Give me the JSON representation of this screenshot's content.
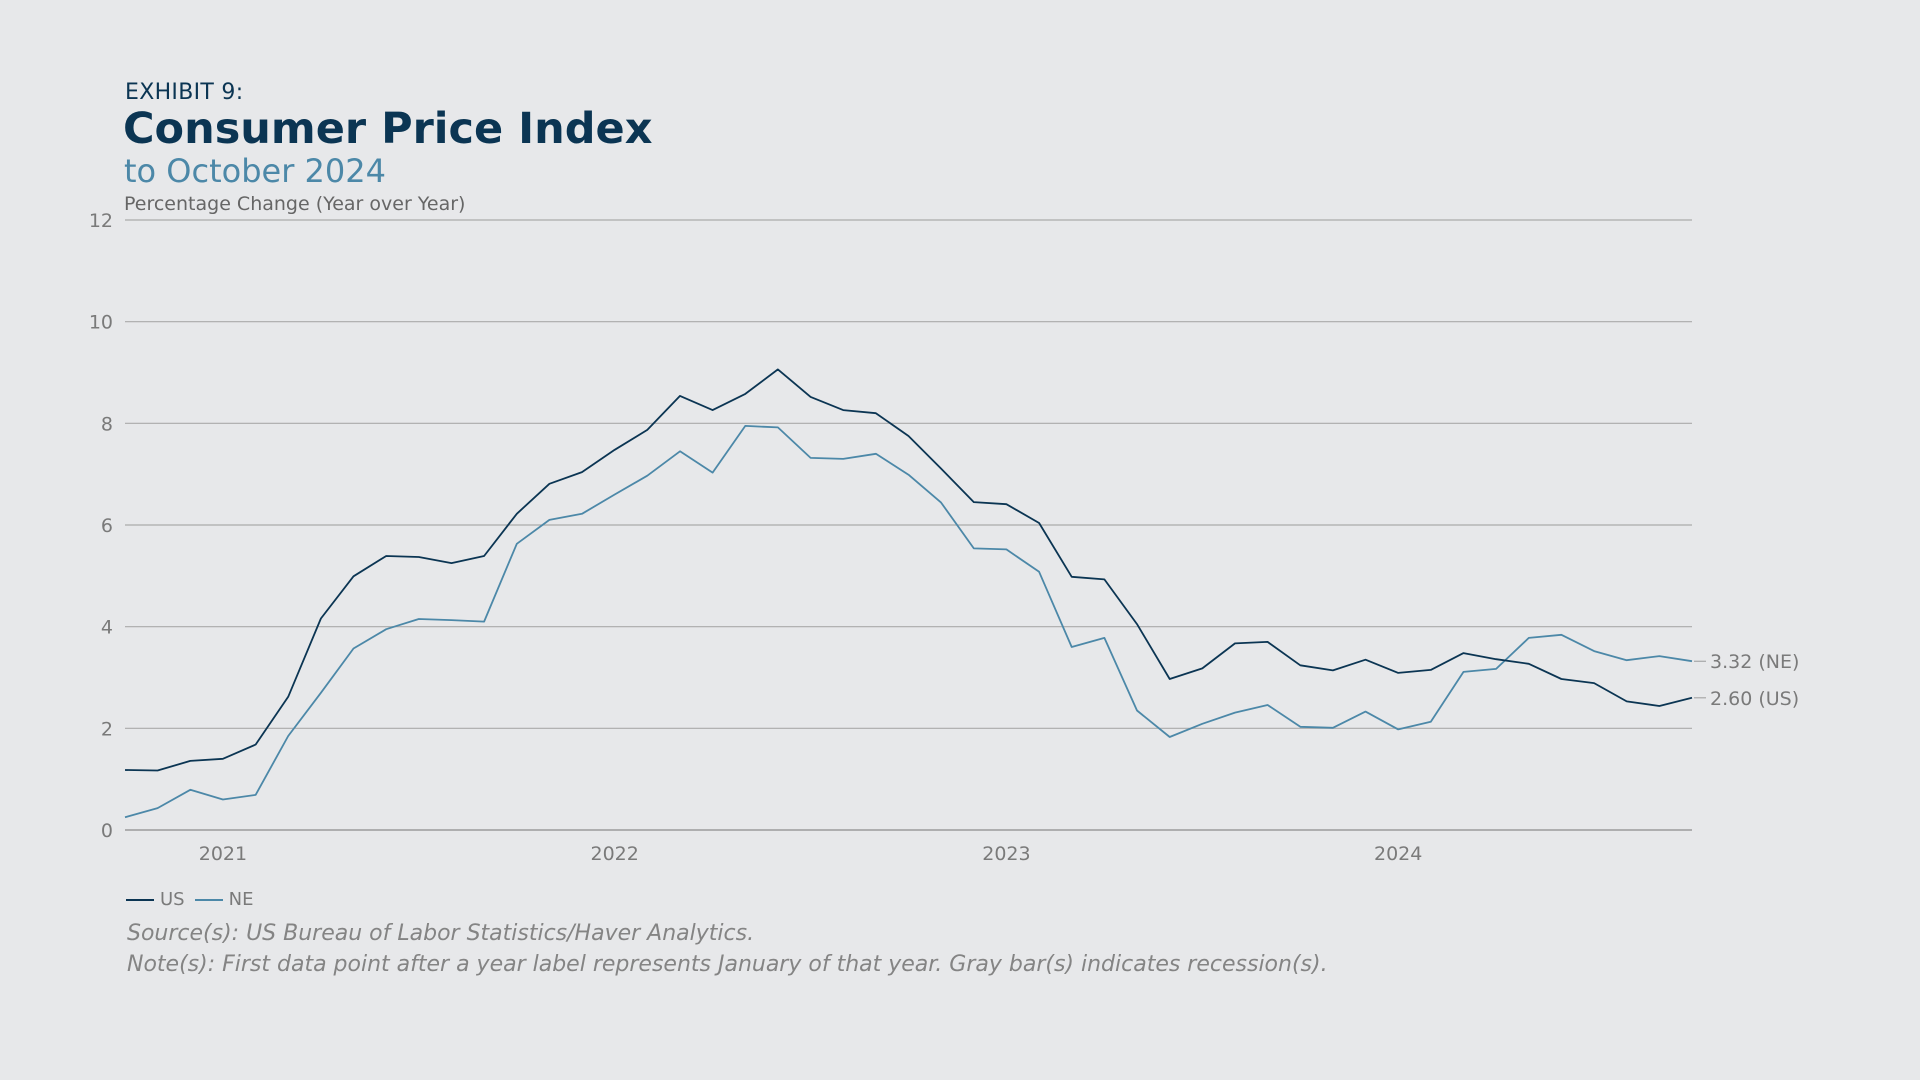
{
  "header": {
    "exhibit": "EXHIBIT 9:",
    "title": "Consumer Price Index",
    "subtitle": "to October 2024",
    "ylabel": "Percentage Change (Year over Year)"
  },
  "legend": {
    "us_label": "US",
    "ne_label": "NE"
  },
  "notes": {
    "source": "Source(s): US Bureau of Labor Statistics/Haver Analytics.",
    "note": "Note(s): First data point after a year label represents January of that year. Gray bar(s) indicates recession(s)."
  },
  "colors": {
    "us": "#0b3553",
    "ne": "#4c88a8",
    "grid": "#aaaaaa",
    "tick_text": "#7a7a7a",
    "background": "#e7e8ea"
  },
  "chart_data": {
    "type": "line",
    "title": "Consumer Price Index",
    "subtitle": "to October 2024",
    "ylabel": "Percentage Change (Year over Year)",
    "xlabel": "",
    "ylim": [
      0,
      12
    ],
    "yticks": [
      0,
      2,
      4,
      6,
      8,
      10,
      12
    ],
    "grid": true,
    "legend_position": "bottom-left",
    "x_start": "2020-10",
    "x_end": "2024-10",
    "x": [
      "2020-10",
      "2020-11",
      "2020-12",
      "2021-01",
      "2021-02",
      "2021-03",
      "2021-04",
      "2021-05",
      "2021-06",
      "2021-07",
      "2021-08",
      "2021-09",
      "2021-10",
      "2021-11",
      "2021-12",
      "2022-01",
      "2022-02",
      "2022-03",
      "2022-04",
      "2022-05",
      "2022-06",
      "2022-07",
      "2022-08",
      "2022-09",
      "2022-10",
      "2022-11",
      "2022-12",
      "2023-01",
      "2023-02",
      "2023-03",
      "2023-04",
      "2023-05",
      "2023-06",
      "2023-07",
      "2023-08",
      "2023-09",
      "2023-10",
      "2023-11",
      "2023-12",
      "2024-01",
      "2024-02",
      "2024-03",
      "2024-04",
      "2024-05",
      "2024-06",
      "2024-07",
      "2024-08",
      "2024-09",
      "2024-10"
    ],
    "x_tick_labels": [
      "2021",
      "2022",
      "2023",
      "2024"
    ],
    "x_tick_months": [
      "2021-01",
      "2022-01",
      "2023-01",
      "2024-01"
    ],
    "series": [
      {
        "name": "US",
        "end_label": "2.60 (US)",
        "values": [
          1.18,
          1.17,
          1.36,
          1.4,
          1.68,
          2.62,
          4.16,
          4.99,
          5.39,
          5.37,
          5.25,
          5.39,
          6.22,
          6.81,
          7.04,
          7.48,
          7.87,
          8.54,
          8.26,
          8.58,
          9.06,
          8.52,
          8.26,
          8.2,
          7.75,
          7.11,
          6.45,
          6.41,
          6.04,
          4.98,
          4.93,
          4.05,
          2.97,
          3.18,
          3.67,
          3.7,
          3.24,
          3.14,
          3.35,
          3.09,
          3.15,
          3.48,
          3.36,
          3.27,
          2.97,
          2.89,
          2.53,
          2.44,
          2.6
        ]
      },
      {
        "name": "NE",
        "end_label": "3.32 (NE)",
        "values": [
          0.25,
          0.43,
          0.79,
          0.6,
          0.69,
          1.85,
          2.7,
          3.57,
          3.95,
          4.15,
          4.13,
          4.1,
          5.63,
          6.1,
          6.22,
          6.6,
          6.97,
          7.45,
          7.03,
          7.95,
          7.92,
          7.32,
          7.3,
          7.4,
          6.99,
          6.44,
          5.54,
          5.52,
          5.08,
          3.6,
          3.78,
          2.35,
          1.83,
          2.09,
          2.31,
          2.46,
          2.03,
          2.01,
          2.33,
          1.98,
          2.13,
          3.11,
          3.17,
          3.78,
          3.84,
          3.52,
          3.34,
          3.42,
          3.32
        ]
      }
    ]
  }
}
